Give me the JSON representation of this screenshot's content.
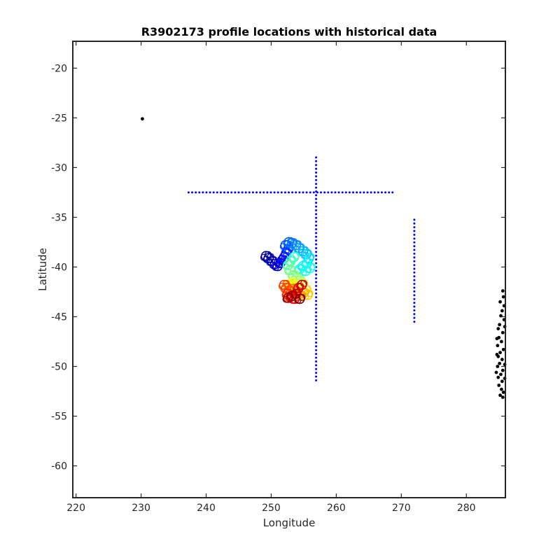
{
  "chart_data": {
    "type": "scatter",
    "title": "R3902173 profile locations with historical data",
    "xlabel": "Longitude",
    "ylabel": "Latitude",
    "xlim": [
      219.5,
      286
    ],
    "ylim": [
      -63.2,
      -17.3
    ],
    "xticks": [
      220,
      230,
      240,
      250,
      260,
      270,
      280
    ],
    "yticks": [
      -20,
      -25,
      -30,
      -35,
      -40,
      -45,
      -50,
      -55,
      -60
    ],
    "grid": false,
    "box": true,
    "colors": {
      "historical_ctd": "#0000ff",
      "historical_other": "#000000",
      "profile_colormap": "jet"
    },
    "series": [
      {
        "role": "historical-blue",
        "color": "#0000ff",
        "groups": [
          {
            "shape": "hline",
            "y": -32.5,
            "x_from": 237.3,
            "x_to": 269.0,
            "step": 0.55
          },
          {
            "shape": "vline",
            "x": 256.9,
            "y_from": -51.4,
            "y_to": -28.7,
            "step": 0.38
          },
          {
            "shape": "vline",
            "x": 272.0,
            "y_from": -45.5,
            "y_to": -34.9,
            "step": 0.38
          }
        ]
      },
      {
        "role": "historical-black",
        "color": "#000000",
        "points": [
          [
            230.2,
            -25.1
          ],
          [
            285.6,
            -42.4
          ],
          [
            285.7,
            -43.0
          ],
          [
            285.2,
            -43.5
          ],
          [
            285.8,
            -43.9
          ],
          [
            285.5,
            -44.4
          ],
          [
            285.3,
            -44.9
          ],
          [
            285.8,
            -45.3
          ],
          [
            285.1,
            -45.8
          ],
          [
            284.9,
            -46.2
          ],
          [
            285.6,
            -46.6
          ],
          [
            285.0,
            -47.1
          ],
          [
            285.4,
            -47.5
          ],
          [
            284.8,
            -47.9
          ],
          [
            285.7,
            -48.3
          ],
          [
            285.2,
            -48.6
          ],
          [
            284.9,
            -49.0
          ],
          [
            285.5,
            -49.3
          ],
          [
            285.1,
            -49.7
          ],
          [
            284.8,
            -50.0
          ],
          [
            285.6,
            -50.4
          ],
          [
            285.3,
            -50.8
          ],
          [
            284.9,
            -51.1
          ],
          [
            285.5,
            -51.5
          ],
          [
            285.0,
            -51.9
          ],
          [
            285.4,
            -52.3
          ],
          [
            285.7,
            -52.6
          ],
          [
            285.2,
            -52.9
          ],
          [
            285.6,
            -53.1
          ],
          [
            284.7,
            -48.8
          ],
          [
            285.9,
            -49.8
          ],
          [
            284.6,
            -50.6
          ],
          [
            285.9,
            -51.2
          ],
          [
            284.7,
            -47.2
          ],
          [
            285.9,
            -46.0
          ]
        ]
      },
      {
        "role": "float-profiles",
        "colormap": "jet",
        "points": [
          [
            249.2,
            -38.9,
            0.02
          ],
          [
            249.6,
            -39.1,
            0.03
          ],
          [
            250.1,
            -39.4,
            0.05
          ],
          [
            250.6,
            -39.7,
            0.06
          ],
          [
            251.0,
            -39.9,
            0.07
          ],
          [
            251.4,
            -39.6,
            0.09
          ],
          [
            251.7,
            -39.3,
            0.11
          ],
          [
            252.0,
            -39.0,
            0.13
          ],
          [
            252.3,
            -38.6,
            0.15
          ],
          [
            252.6,
            -38.2,
            0.17
          ],
          [
            252.2,
            -37.8,
            0.2
          ],
          [
            252.7,
            -37.5,
            0.22
          ],
          [
            253.2,
            -37.6,
            0.24
          ],
          [
            253.8,
            -37.8,
            0.26
          ],
          [
            254.3,
            -38.1,
            0.28
          ],
          [
            254.9,
            -38.4,
            0.3
          ],
          [
            255.4,
            -38.7,
            0.32
          ],
          [
            255.8,
            -39.1,
            0.34
          ],
          [
            255.5,
            -39.6,
            0.36
          ],
          [
            254.9,
            -39.9,
            0.37
          ],
          [
            254.4,
            -40.2,
            0.38
          ],
          [
            255.3,
            -40.4,
            0.39
          ],
          [
            256.0,
            -40.1,
            0.4
          ],
          [
            253.5,
            -39.0,
            0.42
          ],
          [
            253.0,
            -39.4,
            0.44
          ],
          [
            252.6,
            -39.8,
            0.46
          ],
          [
            252.9,
            -40.3,
            0.48
          ],
          [
            253.4,
            -40.8,
            0.5
          ],
          [
            253.9,
            -41.1,
            0.52
          ],
          [
            254.4,
            -41.4,
            0.54
          ],
          [
            254.8,
            -41.7,
            0.56
          ],
          [
            254.2,
            -42.0,
            0.58
          ],
          [
            253.6,
            -41.9,
            0.6
          ],
          [
            253.1,
            -41.6,
            0.62
          ],
          [
            252.7,
            -41.8,
            0.64
          ],
          [
            255.3,
            -42.3,
            0.66
          ],
          [
            255.6,
            -42.8,
            0.68
          ],
          [
            255.0,
            -42.6,
            0.7
          ],
          [
            254.5,
            -42.9,
            0.72
          ],
          [
            254.0,
            -42.5,
            0.74
          ],
          [
            253.4,
            -42.2,
            0.76
          ],
          [
            252.8,
            -42.4,
            0.78
          ],
          [
            252.3,
            -42.1,
            0.8
          ],
          [
            252.0,
            -41.8,
            0.82
          ],
          [
            252.5,
            -42.7,
            0.84
          ],
          [
            253.0,
            -43.0,
            0.86
          ],
          [
            253.6,
            -43.2,
            0.88
          ],
          [
            254.2,
            -42.1,
            0.9
          ],
          [
            254.7,
            -41.8,
            0.92
          ],
          [
            253.8,
            -42.7,
            0.94
          ],
          [
            253.2,
            -42.9,
            0.96
          ],
          [
            252.6,
            -43.1,
            0.98
          ],
          [
            254.4,
            -43.2,
            1.0
          ]
        ]
      }
    ]
  }
}
